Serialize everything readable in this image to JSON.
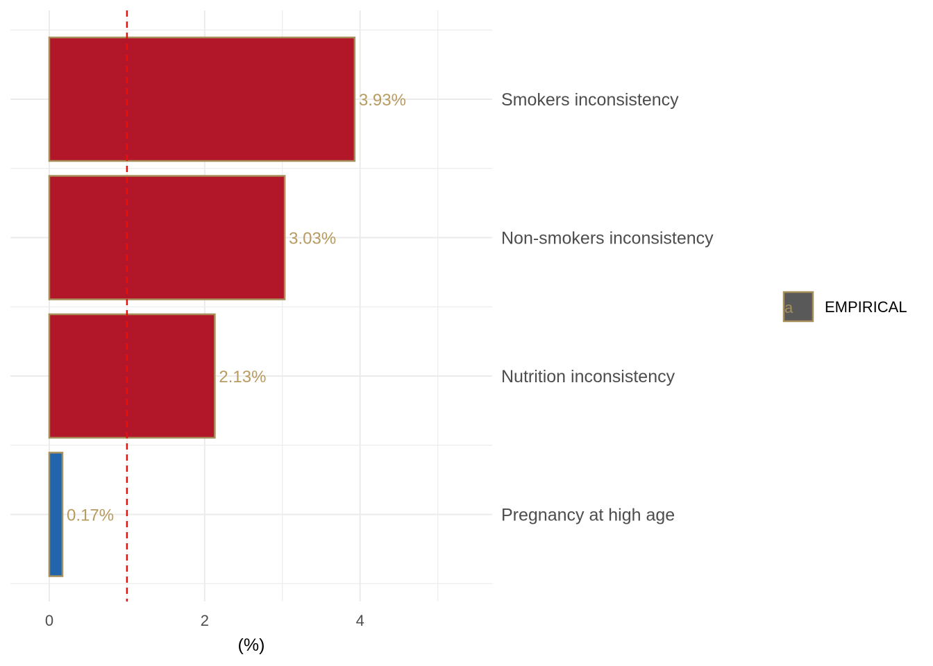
{
  "chart_data": {
    "type": "bar",
    "orientation": "horizontal",
    "categories": [
      "Smokers inconsistency",
      "Non-smokers inconsistency",
      "Nutrition inconsistency",
      "Pregnancy at high age"
    ],
    "values": [
      3.93,
      3.03,
      2.13,
      0.17
    ],
    "data_labels": [
      "3.93%",
      "3.03%",
      "2.13%",
      "0.17%"
    ],
    "bar_colors": [
      "#b11729",
      "#b11729",
      "#b11729",
      "#2265ac"
    ],
    "bar_outline_color": "#a78f5b",
    "label_color": "#b79b60",
    "xlabel": "(%)",
    "ylabel": "",
    "xlim": [
      -0.5,
      5.7
    ],
    "x_ticks": [
      0,
      2,
      4
    ],
    "x_tick_labels": [
      "0",
      "2",
      "4"
    ],
    "x_minor_gridlines": [
      1,
      3,
      5
    ],
    "reference_line": {
      "x": 1,
      "color": "#e8100c",
      "style": "dashed"
    },
    "grid": true,
    "legend": {
      "position": "right",
      "entries": [
        {
          "label": "EMPIRICAL",
          "key_text": "a",
          "fill": "#595959",
          "outline": "#a78f5b"
        }
      ]
    }
  }
}
